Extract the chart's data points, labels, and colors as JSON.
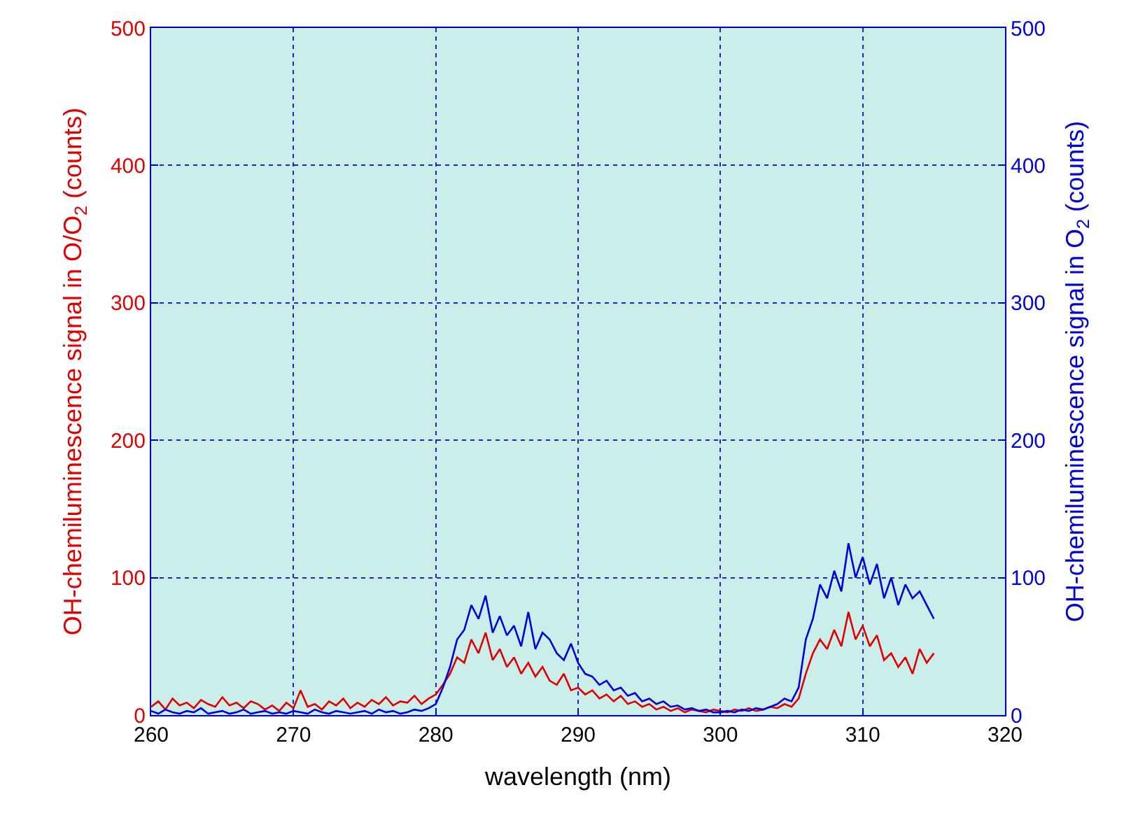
{
  "chart_data": {
    "type": "line",
    "xlabel": "wavelength (nm)",
    "ylabel": "OH-chemiluminescence signal in O/O$_{2}$ (counts)",
    "y2label": "OH-chemiluminescence signal in O$_{2}$ (counts)",
    "xlim": [
      260,
      320
    ],
    "xticks": [
      260,
      270,
      280,
      290,
      300,
      310,
      320
    ],
    "ylim": [
      0,
      500
    ],
    "yticks": [
      0,
      100,
      200,
      300,
      400,
      500
    ],
    "y2lim": [
      0,
      500
    ],
    "y2ticks": [
      0,
      100,
      200,
      300,
      400,
      500
    ],
    "grid": true,
    "legend": false,
    "marker": "none",
    "line_style": "solid",
    "x": [
      260,
      260.5,
      261,
      261.5,
      262,
      262.5,
      263,
      263.5,
      264,
      264.5,
      265,
      265.5,
      266,
      266.5,
      267,
      267.5,
      268,
      268.5,
      269,
      269.5,
      270,
      270.5,
      271,
      271.5,
      272,
      272.5,
      273,
      273.5,
      274,
      274.5,
      275,
      275.5,
      276,
      276.5,
      277,
      277.5,
      278,
      278.5,
      279,
      279.5,
      280,
      280.5,
      281,
      281.5,
      282,
      282.5,
      283,
      283.5,
      284,
      284.5,
      285,
      285.5,
      286,
      286.5,
      287,
      287.5,
      288,
      288.5,
      289,
      289.5,
      290,
      290.5,
      291,
      291.5,
      292,
      292.5,
      293,
      293.5,
      294,
      294.5,
      295,
      295.5,
      296,
      296.5,
      297,
      297.5,
      298,
      298.5,
      299,
      299.5,
      300,
      300.5,
      301,
      301.5,
      302,
      302.5,
      303,
      303.5,
      304,
      304.5,
      305,
      305.5,
      306,
      306.5,
      307,
      307.5,
      308,
      308.5,
      309,
      309.5,
      310,
      310.5,
      311,
      311.5,
      312,
      312.5,
      313,
      313.5,
      314,
      314.5,
      315
    ],
    "series": [
      {
        "color": "#0000dd",
        "axis": "y2",
        "values": [
          3,
          1,
          4,
          2,
          1,
          3,
          2,
          5,
          1,
          2,
          3,
          1,
          2,
          4,
          1,
          2,
          3,
          1,
          2,
          1,
          3,
          2,
          1,
          4,
          2,
          1,
          3,
          2,
          1,
          2,
          3,
          1,
          4,
          2,
          3,
          1,
          2,
          4,
          3,
          5,
          8,
          20,
          35,
          55,
          62,
          80,
          70,
          87,
          60,
          72,
          58,
          65,
          50,
          75,
          48,
          60,
          55,
          45,
          40,
          52,
          38,
          30,
          28,
          22,
          25,
          18,
          20,
          14,
          16,
          10,
          12,
          8,
          10,
          6,
          7,
          4,
          5,
          3,
          4,
          2,
          2,
          3,
          2,
          4,
          3,
          5,
          4,
          6,
          8,
          12,
          10,
          20,
          55,
          70,
          95,
          85,
          105,
          90,
          125,
          100,
          115,
          95,
          110,
          85,
          100,
          80,
          95,
          85,
          90,
          80,
          70
        ]
      },
      {
        "color": "#e00000",
        "values": [
          6,
          10,
          4,
          12,
          7,
          9,
          5,
          11,
          8,
          6,
          13,
          7,
          9,
          5,
          10,
          8,
          4,
          7,
          3,
          9,
          5,
          18,
          6,
          8,
          4,
          10,
          7,
          12,
          5,
          9,
          6,
          11,
          8,
          13,
          7,
          10,
          9,
          14,
          8,
          12,
          15,
          22,
          30,
          42,
          38,
          55,
          45,
          60,
          40,
          48,
          35,
          42,
          30,
          38,
          28,
          35,
          25,
          22,
          30,
          18,
          20,
          15,
          18,
          12,
          15,
          10,
          14,
          8,
          10,
          6,
          8,
          4,
          6,
          3,
          5,
          2,
          4,
          3,
          2,
          4,
          3,
          2,
          4,
          3,
          5,
          3,
          4,
          6,
          5,
          8,
          6,
          12,
          30,
          45,
          55,
          48,
          62,
          50,
          75,
          55,
          65,
          50,
          58,
          40,
          45,
          35,
          42,
          30,
          48,
          38,
          45
        ]
      }
    ]
  }
}
